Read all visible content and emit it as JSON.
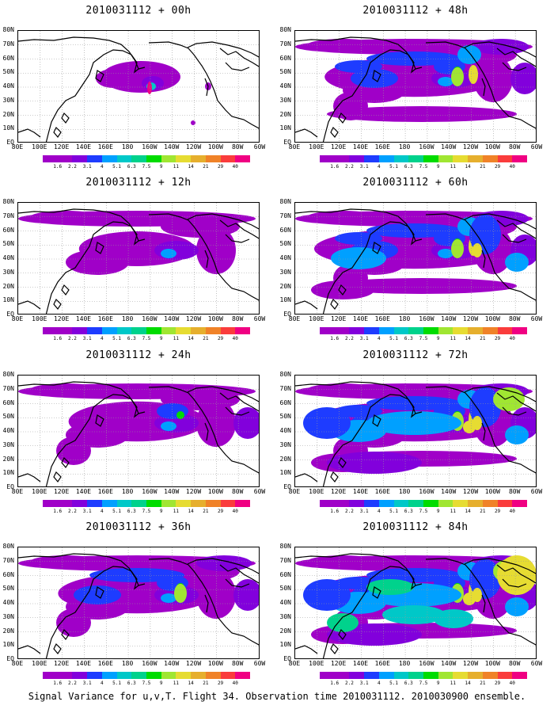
{
  "panels": [
    {
      "title": "2010031112 + 00h",
      "level": 0
    },
    {
      "title": "2010031112 + 48h",
      "level": 4
    },
    {
      "title": "2010031112 + 12h",
      "level": 1
    },
    {
      "title": "2010031112 + 60h",
      "level": 5
    },
    {
      "title": "2010031112 + 24h",
      "level": 2
    },
    {
      "title": "2010031112 + 72h",
      "level": 6
    },
    {
      "title": "2010031112 + 36h",
      "level": 3
    },
    {
      "title": "2010031112 + 84h",
      "level": 7
    }
  ],
  "lat_labels": [
    "80N",
    "70N",
    "60N",
    "50N",
    "40N",
    "30N",
    "20N",
    "10N",
    "EQ"
  ],
  "lon_labels": [
    "80E",
    "100E",
    "120E",
    "140E",
    "160E",
    "180",
    "160W",
    "140W",
    "120W",
    "100W",
    "80W",
    "60W"
  ],
  "colorbar": {
    "labels": [
      "1.6",
      "2.2",
      "3.1",
      "4",
      "5.1",
      "6.3",
      "7.5",
      "9",
      "11",
      "14",
      "21",
      "29",
      "40"
    ],
    "colors": [
      "#a000c8",
      "#8200dc",
      "#1e3cff",
      "#00a0ff",
      "#00c8c8",
      "#00d28c",
      "#00dc00",
      "#a0e632",
      "#e6dc32",
      "#e6af2d",
      "#f08228",
      "#fa3c3c",
      "#f00082"
    ]
  },
  "footer": "Signal Variance for u,v,T. Flight 34. Observation time 2010031112. 2010030900 ensemble."
}
